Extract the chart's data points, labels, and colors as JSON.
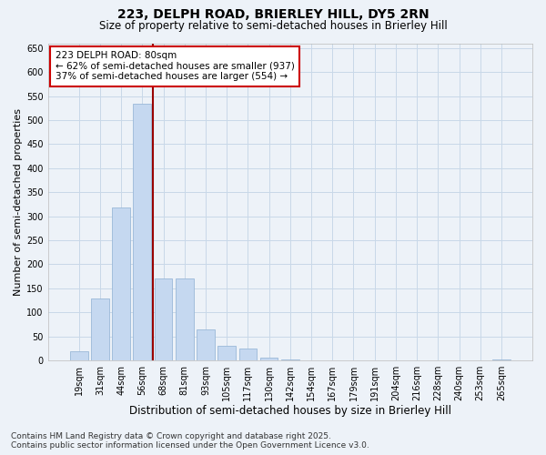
{
  "title1": "223, DELPH ROAD, BRIERLEY HILL, DY5 2RN",
  "title2": "Size of property relative to semi-detached houses in Brierley Hill",
  "xlabel": "Distribution of semi-detached houses by size in Brierley Hill",
  "ylabel": "Number of semi-detached properties",
  "bin_labels": [
    "19sqm",
    "31sqm",
    "44sqm",
    "56sqm",
    "68sqm",
    "81sqm",
    "93sqm",
    "105sqm",
    "117sqm",
    "130sqm",
    "142sqm",
    "154sqm",
    "167sqm",
    "179sqm",
    "191sqm",
    "204sqm",
    "216sqm",
    "228sqm",
    "240sqm",
    "253sqm",
    "265sqm"
  ],
  "bar_values": [
    20,
    128,
    318,
    535,
    170,
    170,
    65,
    30,
    25,
    5,
    2,
    0,
    0,
    0,
    0,
    0,
    0,
    0,
    0,
    0,
    2
  ],
  "bar_color": "#c5d8f0",
  "bar_edge_color": "#9ab8d8",
  "vline_x": 3.5,
  "vline_color": "#990000",
  "annotation_title": "223 DELPH ROAD: 80sqm",
  "annotation_line1": "← 62% of semi-detached houses are smaller (937)",
  "annotation_line2": "37% of semi-detached houses are larger (554) →",
  "annotation_box_facecolor": "#ffffff",
  "annotation_box_edgecolor": "#cc0000",
  "ylim": [
    0,
    660
  ],
  "yticks": [
    0,
    50,
    100,
    150,
    200,
    250,
    300,
    350,
    400,
    450,
    500,
    550,
    600,
    650
  ],
  "grid_color": "#c8d8e8",
  "bg_color": "#edf2f8",
  "footnote1": "Contains HM Land Registry data © Crown copyright and database right 2025.",
  "footnote2": "Contains public sector information licensed under the Open Government Licence v3.0."
}
